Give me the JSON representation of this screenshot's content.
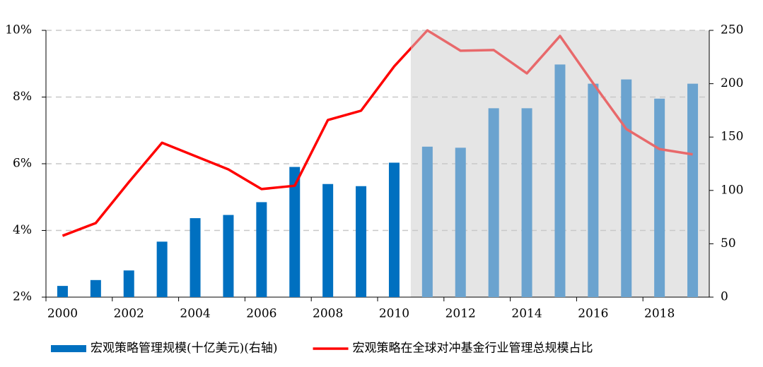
{
  "chart_data": {
    "type": "bar-line",
    "categories": [
      "2000",
      null,
      "2002",
      null,
      "2004",
      null,
      "2006",
      null,
      "2008",
      null,
      "2010",
      null,
      "2012",
      null,
      "2014",
      null,
      "2016",
      null,
      "2018",
      null
    ],
    "series": [
      {
        "name": "宏观策略管理规模(十亿美元)(右轴)",
        "type": "bar",
        "axis": "y2",
        "color": "#0070c0",
        "shaded_color": "#6ba3cf",
        "values": [
          10.5,
          16,
          25,
          52,
          74,
          77,
          89,
          122,
          106,
          104,
          126,
          141,
          140,
          177,
          177,
          218,
          200,
          204,
          186,
          200
        ]
      },
      {
        "name": "宏观策略在全球对冲基金行业管理总规模占比",
        "type": "line",
        "axis": "y",
        "color": "#ff0000",
        "shaded_color": "#e8696b",
        "values": [
          3.84,
          4.22,
          5.45,
          6.63,
          6.23,
          5.83,
          5.24,
          5.34,
          7.31,
          7.59,
          8.92,
          10.0,
          9.39,
          9.41,
          8.71,
          9.83,
          8.41,
          7.04,
          6.44,
          6.28
        ]
      }
    ],
    "ylim": [
      2,
      10
    ],
    "yticks": [
      {
        "value": 2,
        "label": "2%"
      },
      {
        "value": 4,
        "label": "4%"
      },
      {
        "value": 6,
        "label": "6%"
      },
      {
        "value": 8,
        "label": "8%"
      },
      {
        "value": 10,
        "label": "10%"
      }
    ],
    "y2lim": [
      0,
      250
    ],
    "y2ticks": [
      0,
      50,
      100,
      150,
      200,
      250
    ],
    "shade": {
      "start_index": 11,
      "color": "#e5e5e5"
    },
    "grid": true,
    "legend": "bottom"
  }
}
